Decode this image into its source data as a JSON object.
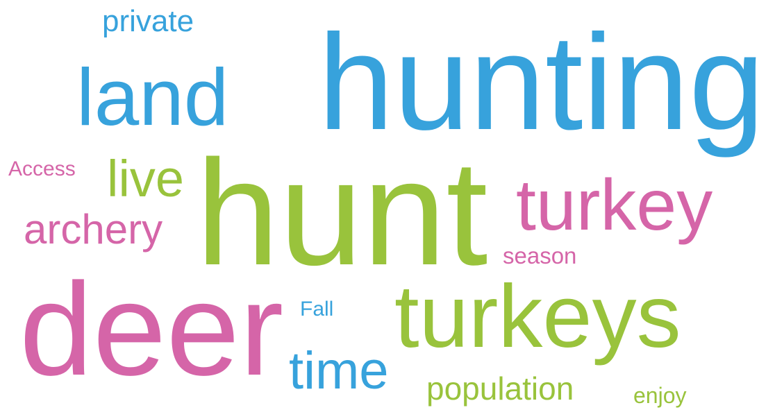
{
  "words": [
    "private",
    "hunting",
    "land",
    "Access",
    "live",
    "hunt",
    "turkey",
    "archery",
    "season",
    "deer",
    "Fall",
    "turkeys",
    "time",
    "population",
    "enjoy"
  ]
}
